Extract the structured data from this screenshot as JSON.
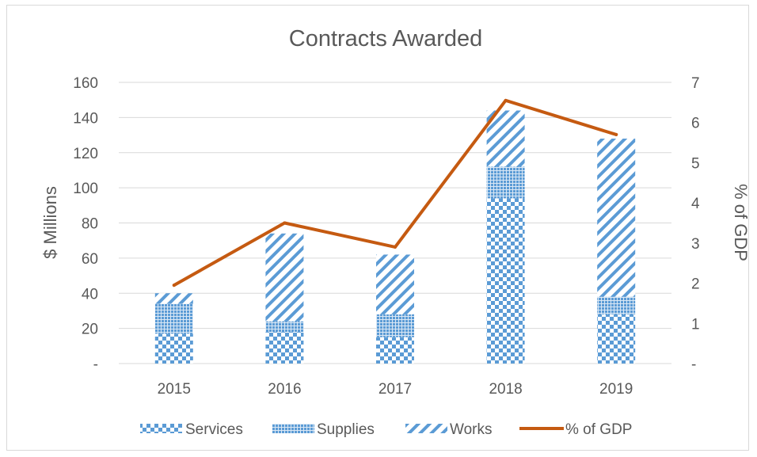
{
  "chart_data": {
    "type": "bar",
    "title": "Contracts Awarded",
    "xlabel": "",
    "ylabel": "$ Millions",
    "y2label": "% of GDP",
    "categories": [
      "2015",
      "2016",
      "2017",
      "2018",
      "2019"
    ],
    "stacked": true,
    "series": [
      {
        "name": "Services",
        "type": "bar",
        "axis": "left",
        "values": [
          17,
          18,
          15,
          94,
          28
        ]
      },
      {
        "name": "Supplies",
        "type": "bar",
        "axis": "left",
        "values": [
          17,
          6,
          13,
          18,
          10
        ]
      },
      {
        "name": "Works",
        "type": "bar",
        "axis": "left",
        "values": [
          6,
          50,
          34,
          32,
          90
        ]
      },
      {
        "name": "% of GDP",
        "type": "line",
        "axis": "right",
        "values": [
          1.95,
          3.5,
          2.9,
          6.55,
          5.7
        ]
      }
    ],
    "ylim": [
      0,
      160
    ],
    "y2lim": [
      0,
      7
    ],
    "yticks": [
      "-",
      "20",
      "40",
      "60",
      "80",
      "100",
      "120",
      "140",
      "160"
    ],
    "y2ticks": [
      "-",
      "1",
      "2",
      "3",
      "4",
      "5",
      "6",
      "7"
    ],
    "grid": true,
    "legend_position": "bottom",
    "colors": {
      "bars": "#5b9bd5",
      "line": "#c55a11",
      "grid": "#d9d9d9"
    }
  }
}
